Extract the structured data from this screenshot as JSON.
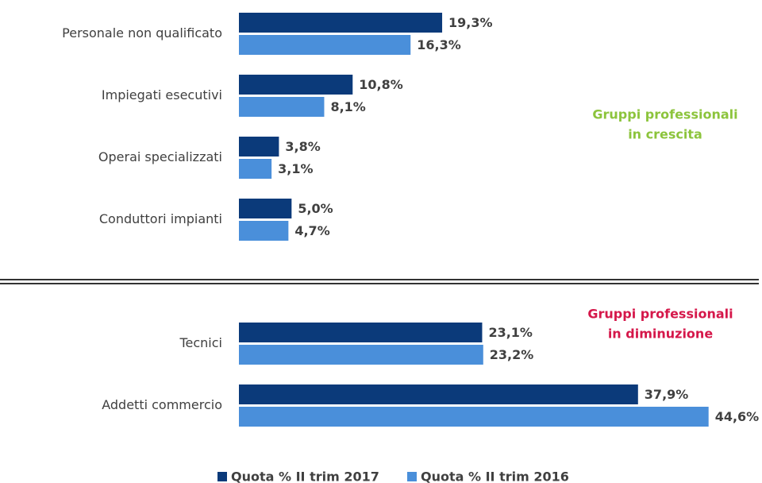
{
  "chart_data": [
    {
      "type": "bar",
      "orientation": "horizontal",
      "categories": [
        "Personale non qualificato",
        "Impiegati esecutivi",
        "Operai specializzati",
        "Conduttori impianti"
      ],
      "series": [
        {
          "name": "Quota % II trim 2017",
          "color": "#0b3a7a",
          "values": [
            19.3,
            10.8,
            3.8,
            5.0
          ],
          "value_labels": [
            "19,3%",
            "10,8%",
            "3,8%",
            "5,0%"
          ]
        },
        {
          "name": "Quota % II trim 2016",
          "color": "#4a8fda",
          "values": [
            16.3,
            8.1,
            3.1,
            4.7
          ],
          "value_labels": [
            "16,3%",
            "8,1%",
            "3,1%",
            "4,7%"
          ]
        }
      ],
      "annotation": [
        "Gruppi professionali",
        "in crescita"
      ],
      "annotation_color": "#8cc43c",
      "xlim": [
        0,
        45
      ]
    },
    {
      "type": "bar",
      "orientation": "horizontal",
      "categories": [
        "Tecnici",
        "Addetti commercio"
      ],
      "series": [
        {
          "color": "#0b3a7a",
          "values": [
            23.1,
            37.9
          ],
          "value_labels": [
            "23,1%",
            "37,9%"
          ]
        },
        {
          "color": "#4a8fda",
          "values": [
            23.2,
            44.6
          ],
          "value_labels": [
            "23,2%",
            "44,6%"
          ]
        }
      ],
      "annotation": [
        "Gruppi professionali",
        "in diminuzione"
      ],
      "annotation_color": "#d5174a",
      "xlim": [
        0,
        45
      ]
    }
  ]
}
